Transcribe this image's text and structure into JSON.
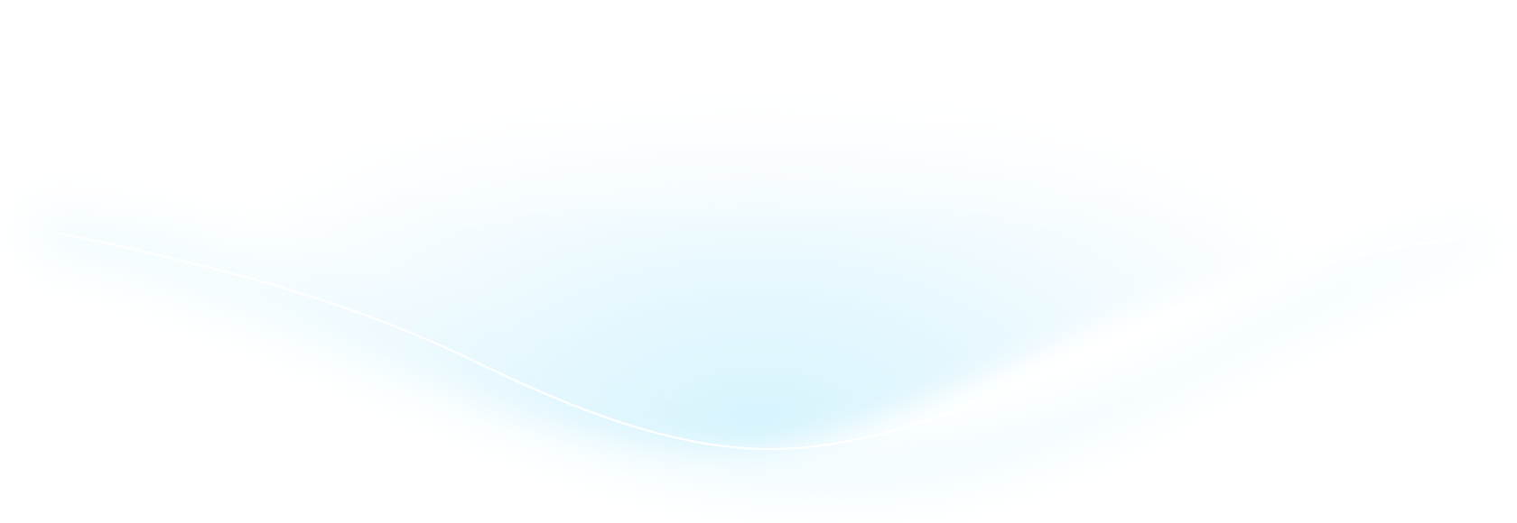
{
  "background": {
    "base_color": "#ffffff",
    "glow_color": "#d6f4fd",
    "glow_edge_color": "#f5fcff",
    "curve_line_color": "#ffffff"
  }
}
